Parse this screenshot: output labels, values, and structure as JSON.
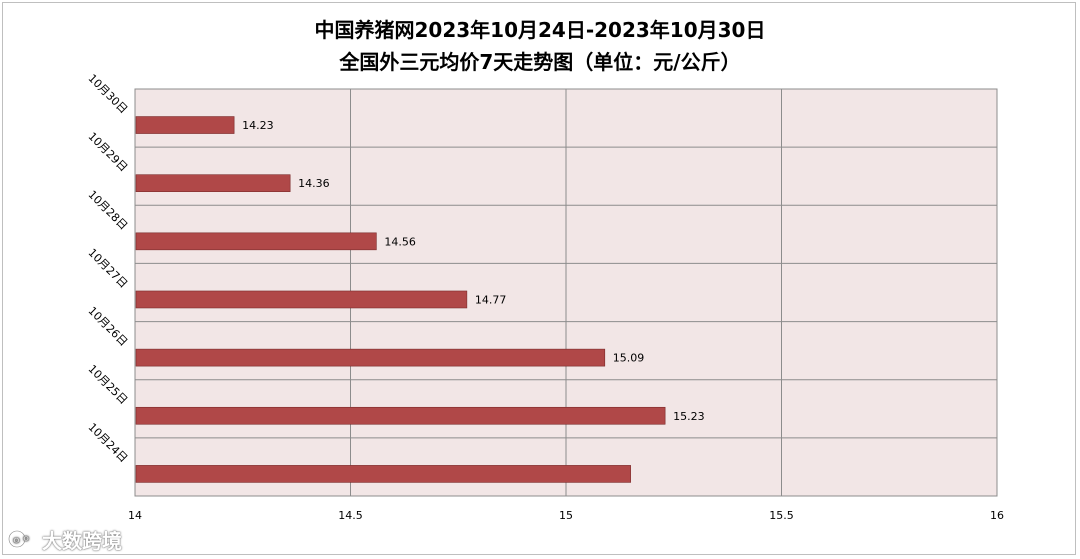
{
  "chart_data": {
    "type": "bar",
    "orientation": "horizontal",
    "title_lines": [
      "中国养猪网2023年10月24日-2023年10月30日",
      "全国外三元均价7天走势图（单位：元/公斤）"
    ],
    "categories": [
      "10月30日",
      "10月29日",
      "10月28日",
      "10月27日",
      "10月26日",
      "10月25日",
      "10月24日"
    ],
    "values": [
      14.23,
      14.36,
      14.56,
      14.77,
      15.09,
      15.23,
      15.15
    ],
    "value_labels": [
      "14.23",
      "14.36",
      "14.56",
      "14.77",
      "15.09",
      "15.23",
      ""
    ],
    "xlim": [
      14,
      16
    ],
    "x_ticks": [
      "14",
      "14.5",
      "15",
      "15.5",
      "16"
    ],
    "x_tick_values": [
      14,
      14.5,
      15,
      15.5,
      16
    ],
    "grid": true,
    "colors": {
      "bar_fill": "#b04848",
      "bar_stroke": "#7a2a2a",
      "plot_bg": "#f2e6e6",
      "grid": "#8c8c8c"
    }
  },
  "watermark": {
    "icon": "logo-icon",
    "text": "大数跨境"
  }
}
